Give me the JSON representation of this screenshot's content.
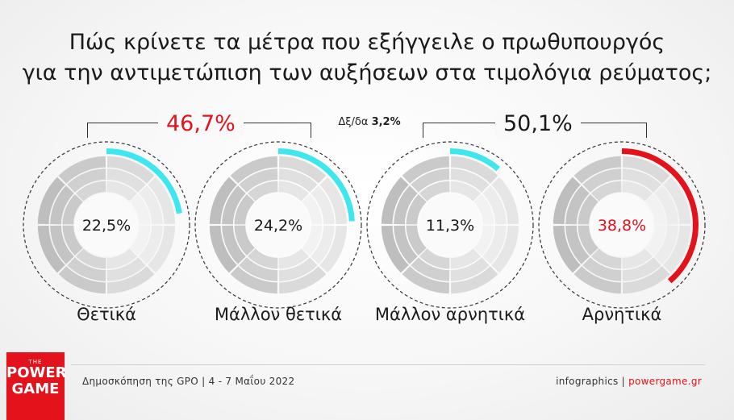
{
  "title_line1": "Πώς κρίνετε τα μέτρα που εξήγγειλε ο πρωθυπουργός",
  "title_line2": "για την αντιμετώπιση των αυξήσεων στα τιμολόγια ρεύματος;",
  "groups": {
    "positive_total": "46,7%",
    "negative_total": "50,1%",
    "neutral_label": "Δξ/δα",
    "neutral_value": "3,2%"
  },
  "colors": {
    "positive": "#3ee6ef",
    "negative": "#e3121b",
    "ring_gray": "#bdbdbd"
  },
  "chart_data": {
    "type": "pie",
    "categories": [
      "Θετικά",
      "Μάλλον θετικά",
      "Μάλλον αρνητικά",
      "Αρνητικά",
      "Δξ/δα"
    ],
    "values": [
      22.5,
      24.2,
      11.3,
      38.8,
      3.2
    ],
    "value_labels": [
      "22,5%",
      "24,2%",
      "11,3%",
      "38,8%",
      "3,2%"
    ],
    "group_totals": [
      {
        "label": "46,7%",
        "value": 46.7
      },
      {
        "label": "50,1%",
        "value": 50.1
      }
    ],
    "title": "Πώς κρίνετε τα μέτρα που εξήγγειλε ο πρωθυπουργός για την αντιμετώπιση των αυξήσεων στα τιμολόγια ρεύματος;"
  },
  "footer": {
    "source": "Δημοσκόπηση της GPO | 4 - 7 Μαΐου 2022",
    "credit_prefix": "infographics | ",
    "credit_site": "powergame.gr",
    "logo_the": "THE",
    "logo_line1": "POWER",
    "logo_line2": "GAME"
  }
}
